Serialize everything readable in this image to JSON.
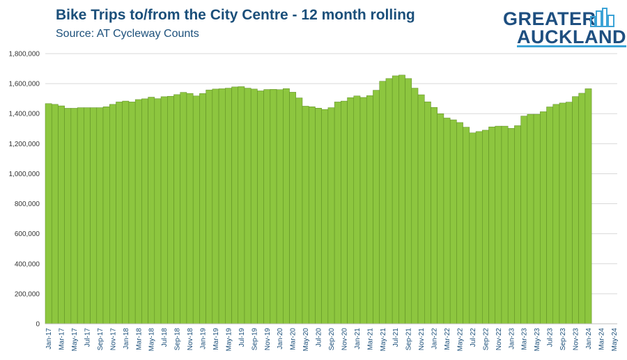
{
  "header": {
    "title": "Bike Trips to/from the City Centre - 12 month rolling",
    "subtitle": "Source: AT Cycleway Counts"
  },
  "logo": {
    "line1": "GREATER",
    "line2": "AUCKLAND",
    "primary_color": "#1e4f80",
    "accent_color": "#3ba3d6"
  },
  "chart_data": {
    "type": "bar",
    "bar_color": "#8dc63f",
    "bar_edge_color": "#5a8a22",
    "grid": true,
    "ylim": [
      0,
      1800000
    ],
    "yticks": [
      "0",
      "200,000",
      "400,000",
      "600,000",
      "800,000",
      "1,000,000",
      "1,200,000",
      "1,400,000",
      "1,600,000",
      "1,800,000"
    ],
    "categories": [
      "Jan-17",
      "Feb-17",
      "Mar-17",
      "Apr-17",
      "May-17",
      "Jun-17",
      "Jul-17",
      "Aug-17",
      "Sep-17",
      "Oct-17",
      "Nov-17",
      "Dec-17",
      "Jan-18",
      "Feb-18",
      "Mar-18",
      "Apr-18",
      "May-18",
      "Jun-18",
      "Jul-18",
      "Aug-18",
      "Sep-18",
      "Oct-18",
      "Nov-18",
      "Dec-18",
      "Jan-19",
      "Feb-19",
      "Mar-19",
      "Apr-19",
      "May-19",
      "Jun-19",
      "Jul-19",
      "Aug-19",
      "Sep-19",
      "Oct-19",
      "Nov-19",
      "Dec-19",
      "Jan-20",
      "Feb-20",
      "Mar-20",
      "Apr-20",
      "May-20",
      "Jun-20",
      "Jul-20",
      "Aug-20",
      "Sep-20",
      "Oct-20",
      "Nov-20",
      "Dec-20",
      "Jan-21",
      "Feb-21",
      "Mar-21",
      "Apr-21",
      "May-21",
      "Jun-21",
      "Jul-21",
      "Aug-21",
      "Sep-21",
      "Oct-21",
      "Nov-21",
      "Dec-21",
      "Jan-22",
      "Feb-22",
      "Mar-22",
      "Apr-22",
      "May-22",
      "Jun-22",
      "Jul-22",
      "Aug-22",
      "Sep-22",
      "Oct-22",
      "Nov-22",
      "Dec-22",
      "Jan-23",
      "Feb-23",
      "Mar-23",
      "Apr-23",
      "May-23",
      "Jun-23",
      "Jul-23",
      "Aug-23",
      "Sep-23",
      "Oct-23",
      "Nov-23",
      "Dec-23",
      "Jan-24",
      "Feb-24",
      "Mar-24",
      "Apr-24",
      "May-24"
    ],
    "labeled_categories": [
      "Jan-17",
      "Mar-17",
      "May-17",
      "Jul-17",
      "Sep-17",
      "Nov-17",
      "Jan-18",
      "Mar-18",
      "May-18",
      "Jul-18",
      "Sep-18",
      "Nov-18",
      "Jan-19",
      "Mar-19",
      "May-19",
      "Jul-19",
      "Sep-19",
      "Nov-19",
      "Jan-20",
      "Mar-20",
      "May-20",
      "Jul-20",
      "Sep-20",
      "Nov-20",
      "Jan-21",
      "Mar-21",
      "May-21",
      "Jul-21",
      "Sep-21",
      "Nov-21",
      "Jan-22",
      "Mar-22",
      "May-22",
      "Jul-22",
      "Sep-22",
      "Nov-22",
      "Jan-23",
      "Mar-23",
      "May-23",
      "Jul-23",
      "Sep-23",
      "Nov-23",
      "Jan-24",
      "Mar-24",
      "May-24"
    ],
    "values": [
      1467000,
      1462000,
      1452000,
      1436000,
      1436000,
      1440000,
      1440000,
      1440000,
      1440000,
      1446000,
      1462000,
      1478000,
      1484000,
      1478000,
      1494000,
      1499000,
      1510000,
      1500000,
      1513000,
      1516000,
      1527000,
      1542000,
      1535000,
      1518000,
      1534000,
      1558000,
      1564000,
      1566000,
      1570000,
      1578000,
      1580000,
      1570000,
      1564000,
      1552000,
      1561000,
      1562000,
      1560000,
      1567000,
      1543000,
      1505000,
      1450000,
      1446000,
      1437000,
      1428000,
      1440000,
      1478000,
      1484000,
      1507000,
      1518000,
      1508000,
      1520000,
      1556000,
      1616000,
      1634000,
      1652000,
      1657000,
      1634000,
      1570000,
      1526000,
      1479000,
      1442000,
      1400000,
      1371000,
      1359000,
      1341000,
      1310000,
      1272000,
      1281000,
      1290000,
      1312000,
      1317000,
      1317000,
      1302000,
      1320000,
      1384000,
      1396000,
      1396000,
      1413000,
      1445000,
      1462000,
      1471000,
      1477000,
      1514000,
      1536000,
      1566000,
      null,
      null,
      null,
      null
    ]
  }
}
